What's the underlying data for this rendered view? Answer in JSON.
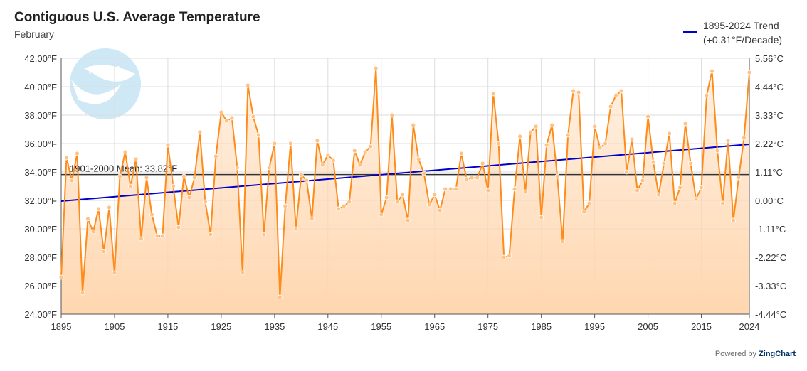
{
  "header": {
    "title": "Contiguous U.S. Average Temperature",
    "subtitle": "February"
  },
  "legend": {
    "line1": "1895-2024 Trend",
    "line2": "(+0.31°F/Decade)"
  },
  "logo": {
    "text": "NOAA"
  },
  "footer": {
    "powered_by": "Powered by",
    "brand": "ZingChart"
  },
  "colors": {
    "series": "#ff8c1a",
    "marker": "#ffc285",
    "fill_top": "#ffd7b0",
    "fill_bottom": "#fff3e8",
    "trend": "#0000cc",
    "mean": "#333333",
    "grid": "#dddddd"
  },
  "chart_data": {
    "type": "line",
    "title": "Contiguous U.S. Average Temperature",
    "subtitle": "February",
    "x_start": 1895,
    "x_ticks": [
      1895,
      1905,
      1915,
      1925,
      1935,
      1945,
      1955,
      1965,
      1975,
      1985,
      1995,
      2005,
      2015,
      2024
    ],
    "xlim": [
      1895,
      2024
    ],
    "ylim": [
      24,
      42
    ],
    "y_ticks_left": [
      "24.00°F",
      "26.00°F",
      "28.00°F",
      "30.00°F",
      "32.00°F",
      "34.00°F",
      "36.00°F",
      "38.00°F",
      "40.00°F",
      "42.00°F"
    ],
    "y_ticks_right": [
      "-4.44°C",
      "-3.33°C",
      "-2.22°C",
      "-1.11°C",
      "0.00°C",
      "1.11°C",
      "2.22°C",
      "3.33°C",
      "4.44°C",
      "5.56°C"
    ],
    "grid": true,
    "series": [
      {
        "values": [
          26.6,
          35.0,
          33.4,
          35.3,
          25.5,
          30.7,
          29.8,
          31.4,
          28.4,
          31.5,
          26.9,
          33.7,
          35.4,
          33.0,
          34.9,
          29.3,
          33.6,
          31.0,
          29.5,
          29.5,
          35.9,
          33.0,
          30.1,
          33.7,
          32.2,
          33.6,
          36.8,
          31.9,
          29.6,
          35.1,
          38.2,
          37.6,
          37.8,
          34.3,
          26.9,
          40.1,
          37.9,
          36.6,
          29.6,
          34.3,
          36.0,
          25.2,
          31.6,
          36.0,
          30.0,
          33.8,
          33.4,
          30.7,
          36.2,
          34.5,
          35.2,
          34.8,
          31.4,
          31.6,
          31.9,
          35.5,
          34.5,
          35.4,
          35.8,
          41.3,
          31.0,
          32.2,
          38.0,
          31.9,
          32.4,
          30.6,
          37.3,
          34.9,
          33.9,
          31.7,
          32.4,
          31.3,
          32.8,
          32.8,
          32.8,
          35.3,
          33.5,
          33.6,
          33.6,
          34.6,
          32.7,
          39.5,
          36.0,
          28.0,
          28.1,
          32.8,
          36.5,
          32.6,
          36.8,
          37.2,
          30.8,
          35.9,
          37.3,
          33.7,
          29.1,
          36.6,
          39.7,
          39.6,
          31.2,
          31.8,
          37.2,
          35.7,
          36.0,
          38.6,
          39.4,
          39.7,
          34.0,
          36.3,
          32.7,
          33.4,
          37.9,
          34.7,
          32.4,
          34.6,
          36.7,
          31.8,
          32.9,
          37.4,
          34.6,
          32.1,
          32.9,
          39.4,
          41.1,
          35.5,
          31.8,
          36.2,
          30.6,
          33.6,
          36.4,
          41.0
        ]
      },
      {
        "name": "1895-2024 Trend",
        "type": "trend",
        "x": [
          1895,
          2024
        ],
        "values": [
          31.95,
          35.95
        ]
      }
    ],
    "annotations": [
      {
        "type": "hline",
        "value": 33.82,
        "label": "1901-2000 Mean: 33.82°F"
      }
    ]
  }
}
